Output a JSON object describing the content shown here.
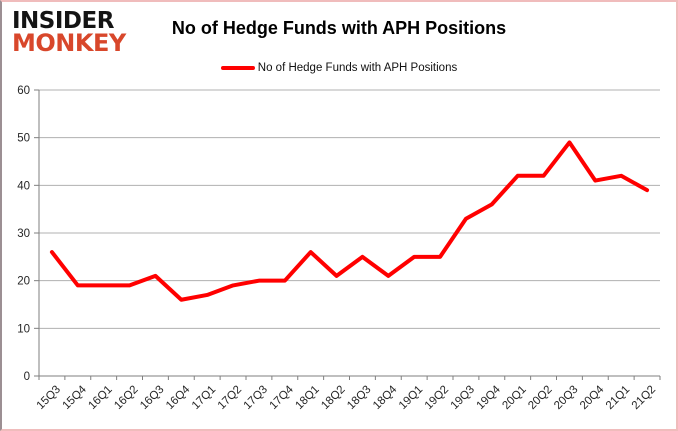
{
  "logo": {
    "line1": "INSIDER",
    "line2": "MONKEY",
    "line1_color": "#141414",
    "line2_color": "#d8472b"
  },
  "header": {
    "title": "No of Hedge Funds with APH Positions"
  },
  "legend": {
    "label": "No of Hedge Funds with APH Positions",
    "line_color": "#ff0000"
  },
  "chart_data": {
    "type": "line",
    "title": "No of Hedge Funds with APH Positions",
    "xlabel": "",
    "ylabel": "",
    "categories": [
      "15Q3",
      "15Q4",
      "16Q1",
      "16Q2",
      "16Q3",
      "16Q4",
      "17Q1",
      "17Q2",
      "17Q3",
      "17Q4",
      "18Q1",
      "18Q2",
      "18Q3",
      "18Q4",
      "19Q1",
      "19Q2",
      "19Q3",
      "19Q4",
      "20Q1",
      "20Q2",
      "20Q3",
      "20Q4",
      "21Q1",
      "21Q2"
    ],
    "series": [
      {
        "name": "No of Hedge Funds with APH Positions",
        "color": "#ff0000",
        "values": [
          26,
          19,
          19,
          19,
          21,
          16,
          17,
          19,
          20,
          20,
          26,
          21,
          25,
          21,
          25,
          25,
          33,
          36,
          42,
          42,
          49,
          41,
          42,
          39
        ]
      }
    ],
    "ylim": [
      0,
      60
    ],
    "ytick_step": 10,
    "grid": "horizontal-only",
    "gridline_color": "#b0b0b0",
    "axis_color": "#7f7f7f",
    "legend_position": "top-center",
    "x_tick_rotation": -45
  }
}
